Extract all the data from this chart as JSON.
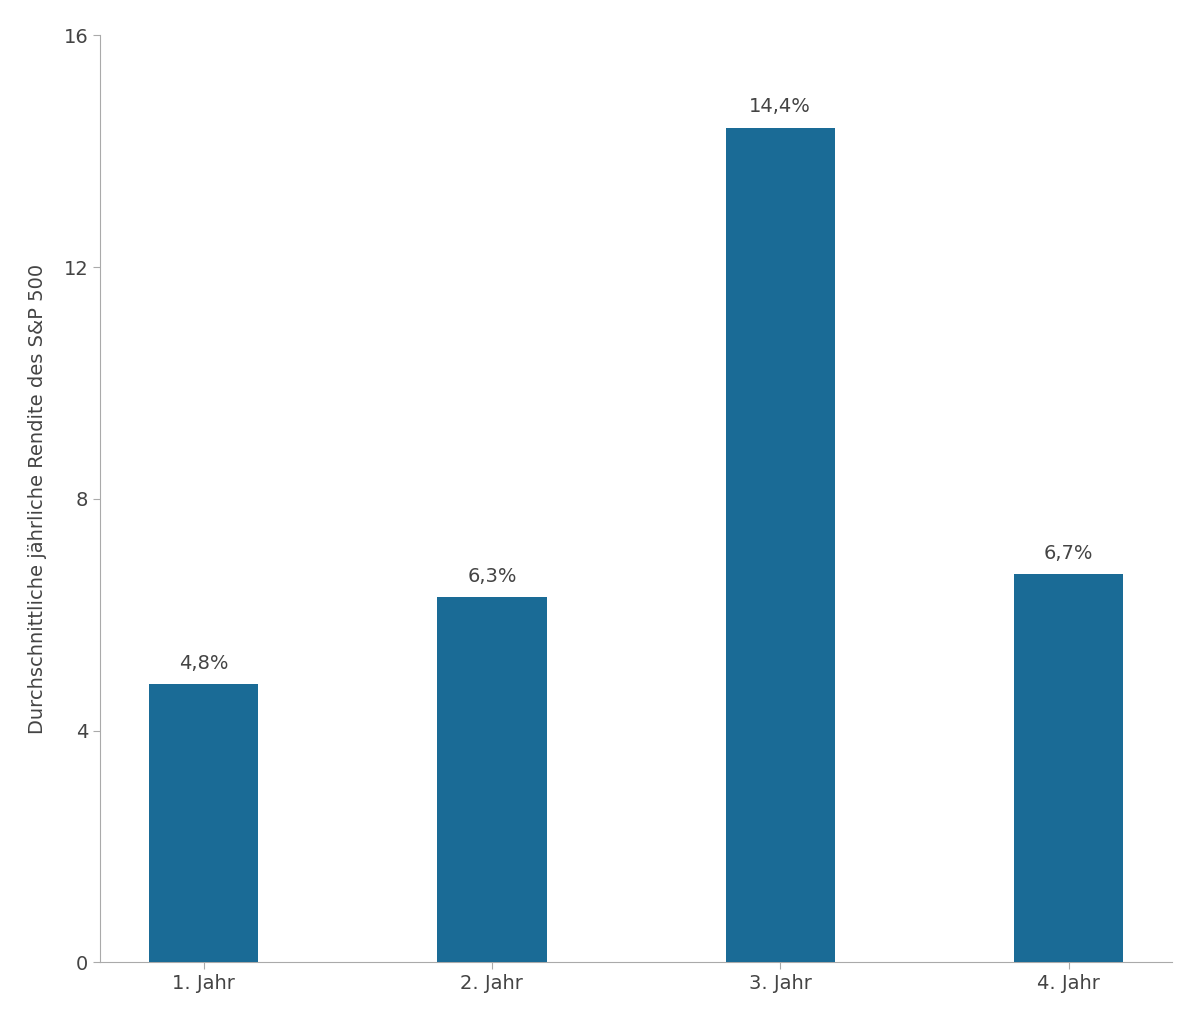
{
  "categories": [
    "1. Jahr",
    "2. Jahr",
    "3. Jahr",
    "4. Jahr"
  ],
  "values": [
    4.8,
    6.3,
    14.4,
    6.7
  ],
  "labels": [
    "4,8%",
    "6,3%",
    "14,4%",
    "6,7%"
  ],
  "bar_color": "#1a6b96",
  "ylabel": "Durchschnittliche jährliche Rendite des S&P 500",
  "ylim": [
    0,
    16
  ],
  "yticks": [
    0,
    4,
    8,
    12,
    16
  ],
  "background_color": "#ffffff",
  "label_fontsize": 14,
  "tick_fontsize": 14,
  "ylabel_fontsize": 14,
  "bar_width": 0.38
}
